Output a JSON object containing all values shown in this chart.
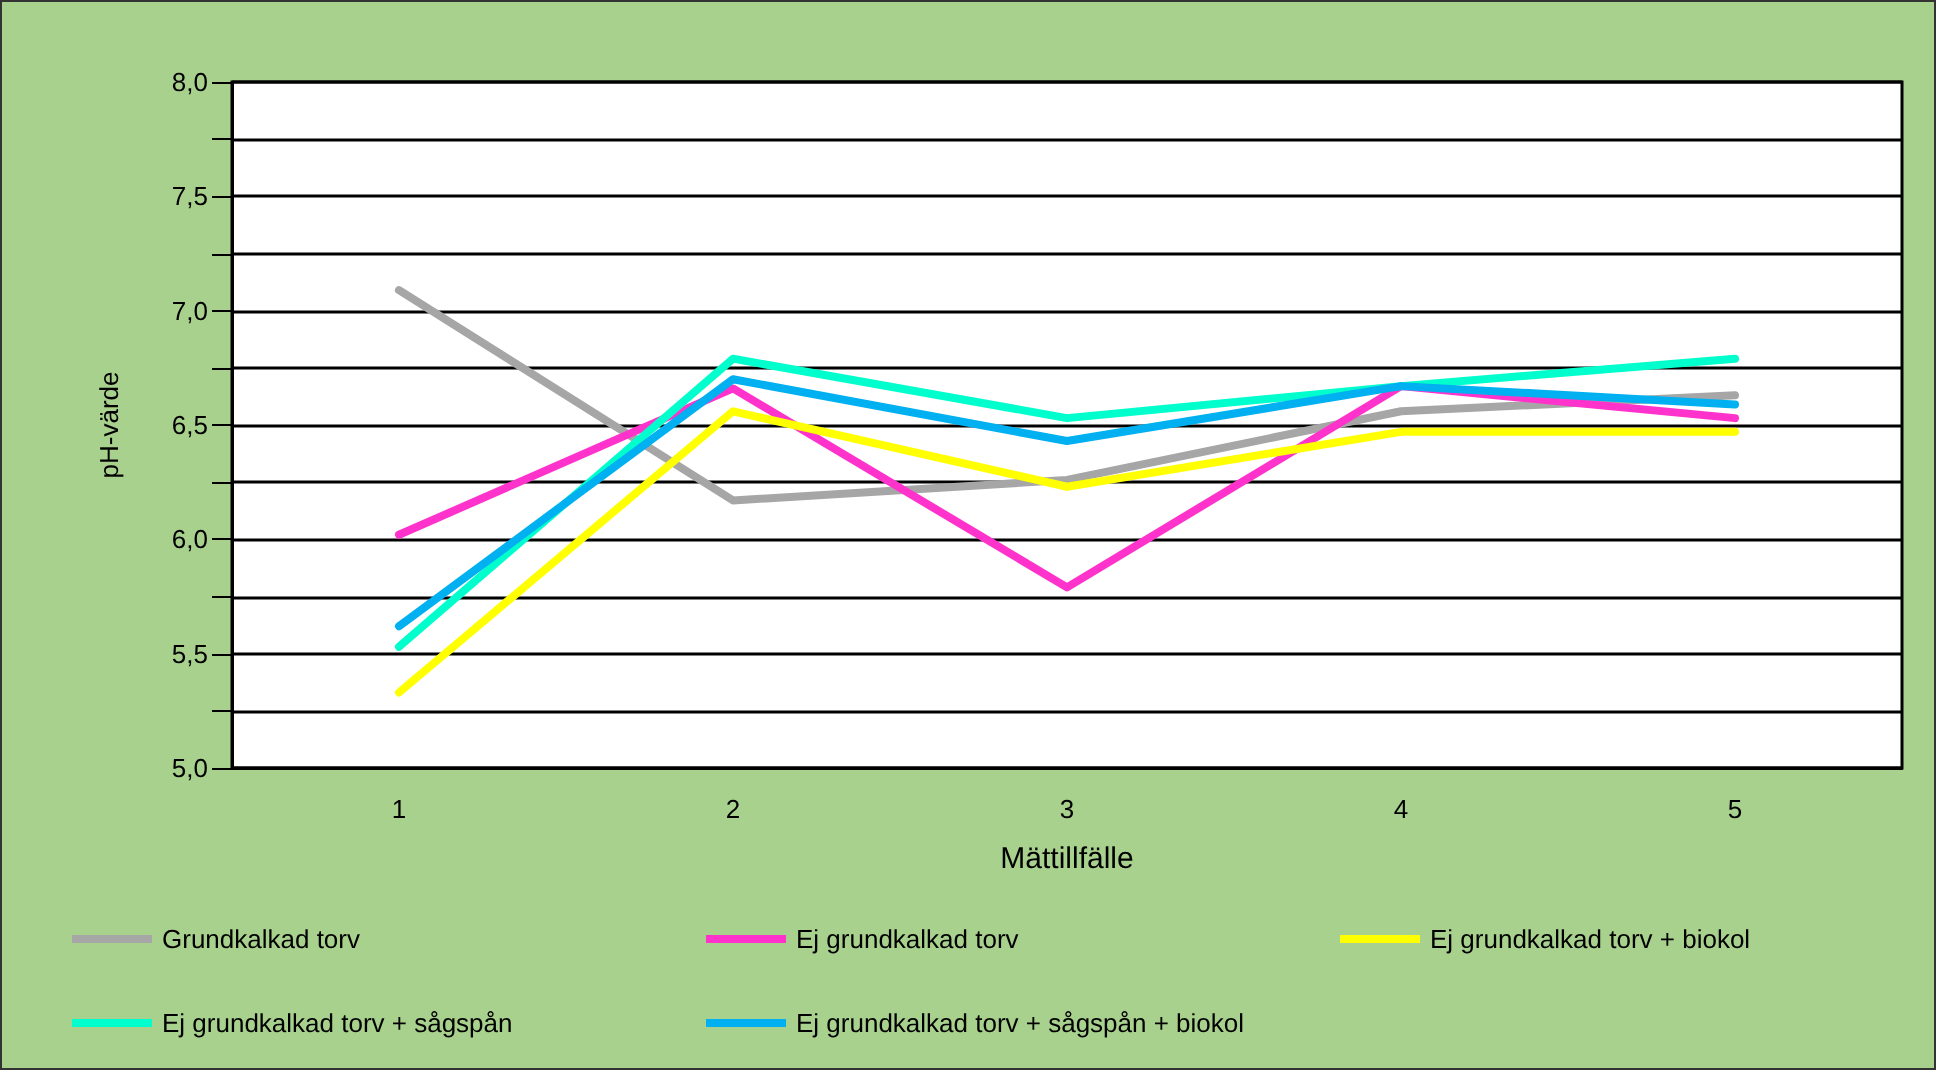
{
  "chart_data": {
    "type": "line",
    "xlabel": "Mättillfälle",
    "ylabel": "pH-värde",
    "categories": [
      "1",
      "2",
      "3",
      "4",
      "5"
    ],
    "series": [
      {
        "name": "Grundkalkad torv",
        "color": "#a6a6a6",
        "values": [
          7.09,
          6.17,
          6.26,
          6.56,
          6.63
        ]
      },
      {
        "name": "Ej grundkalkad torv",
        "color": "#ff33cc",
        "values": [
          6.02,
          6.66,
          5.79,
          6.67,
          6.53
        ]
      },
      {
        "name": "Ej grundkalkad torv + biokol",
        "color": "#ffff00",
        "values": [
          5.33,
          6.56,
          6.23,
          6.47,
          6.47
        ]
      },
      {
        "name": "Ej grundkalkad torv + sågspån",
        "color": "#00ffcc",
        "values": [
          5.53,
          6.79,
          6.53,
          6.67,
          6.79
        ]
      },
      {
        "name": "Ej grundkalkad torv + sågspån + biokol",
        "color": "#00b0f0",
        "values": [
          5.62,
          6.7,
          6.43,
          6.67,
          6.59
        ]
      }
    ],
    "ylim": [
      5,
      8
    ],
    "yticks": [
      {
        "value": 5,
        "label": "5,0"
      },
      {
        "value": 5.25,
        "label": null
      },
      {
        "value": 5.5,
        "label": "5,5"
      },
      {
        "value": 5.75,
        "label": null
      },
      {
        "value": 6,
        "label": "6,0"
      },
      {
        "value": 6.25,
        "label": null
      },
      {
        "value": 6.5,
        "label": "6,5"
      },
      {
        "value": 6.75,
        "label": null
      },
      {
        "value": 7,
        "label": "7,0"
      },
      {
        "value": 7.25,
        "label": null
      },
      {
        "value": 7.5,
        "label": "7,5"
      },
      {
        "value": 7.75,
        "label": null
      },
      {
        "value": 8,
        "label": "8,0"
      }
    ],
    "grid": "y",
    "legend": "bottom",
    "marker": "none",
    "line_style": "solid"
  }
}
